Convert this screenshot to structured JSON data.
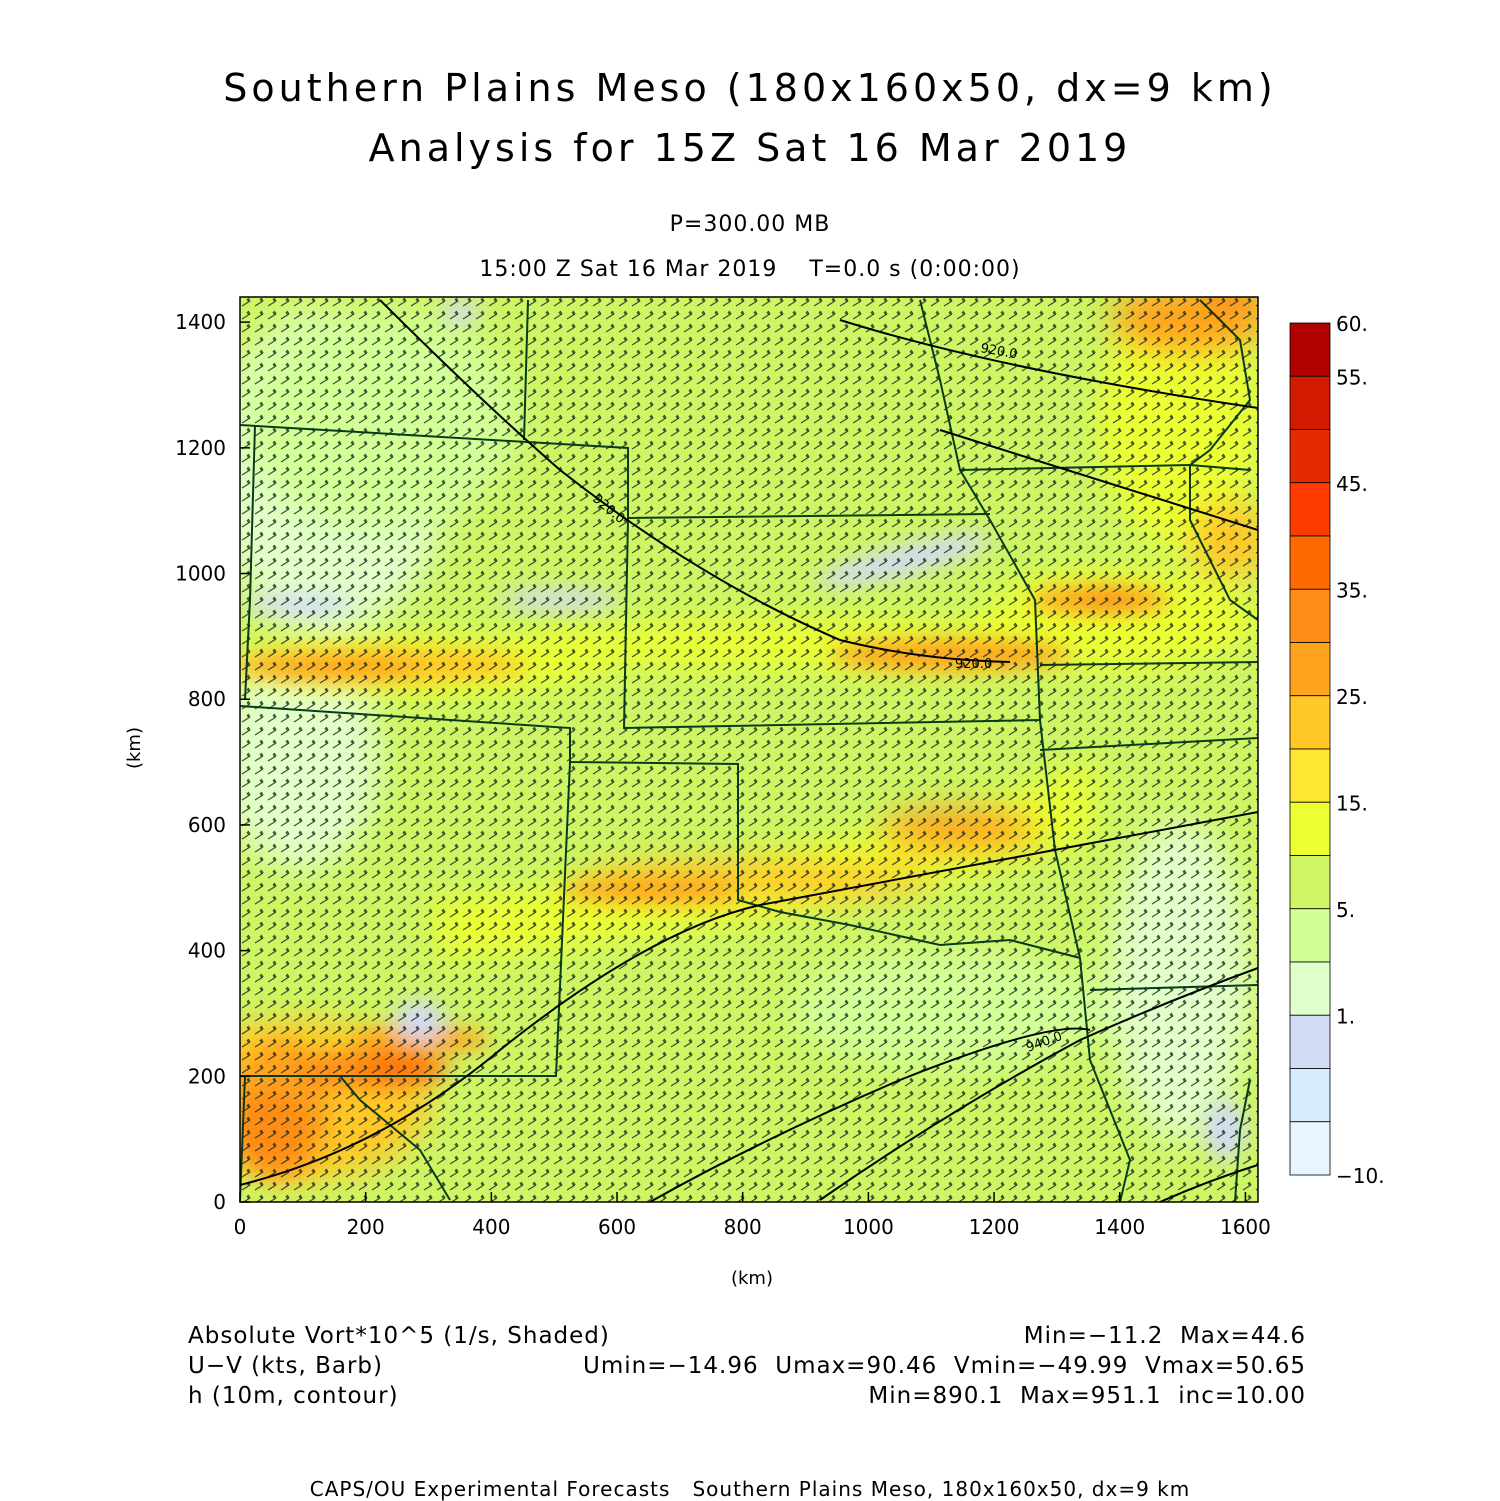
{
  "title": {
    "line1": "Southern Plains Meso (180x160x50, dx=9 km)",
    "line2": "Analysis for 15Z Sat 16 Mar 2019"
  },
  "level": "P=300.00 MB",
  "valid_time": "15:00 Z Sat 16 Mar 2019    T=0.0 s (0:00:00)",
  "axes": {
    "xlabel": "(km)",
    "ylabel": "(km)",
    "xlim": [
      0,
      1620
    ],
    "ylim": [
      0,
      1440
    ],
    "xticks": [
      "0",
      "200",
      "400",
      "600",
      "800",
      "1000",
      "1200",
      "1400",
      "1600"
    ],
    "yticks": [
      "0",
      "200",
      "400",
      "600",
      "800",
      "1000",
      "1200",
      "1400"
    ]
  },
  "colorbar": {
    "labels": [
      "60.",
      "55.",
      "45.",
      "35.",
      "25.",
      "15.",
      "5.",
      "1.",
      "-10."
    ],
    "colors": [
      "#b00000",
      "#d21a00",
      "#e62a00",
      "#ff3c00",
      "#ff6a00",
      "#ff8c14",
      "#ffa41e",
      "#ffc828",
      "#ffe632",
      "#ebff32",
      "#cdf564",
      "#d2ff96",
      "#e1ffc8",
      "#d2dcf5",
      "#d7ebfa",
      "#e6f5ff"
    ]
  },
  "contours": {
    "labels": [
      "920.0",
      "920.0",
      "920.0",
      "940.0"
    ]
  },
  "legend": {
    "field1": "Absolute Vort*10^5 (1/s, Shaded)",
    "field1_stats": "Min=−11.2  Max=44.6",
    "field2": "U−V (kts, Barb)",
    "field2_stats": "Umin=−14.96  Umax=90.46  Vmin=−49.99  Vmax=50.65",
    "field3": "h (10m, contour)",
    "field3_stats": "Min=890.1  Max=951.1  inc=10.00"
  },
  "footer": "CAPS/OU Experimental Forecasts   Southern Plains Meso, 180x160x50, dx=9 km"
}
